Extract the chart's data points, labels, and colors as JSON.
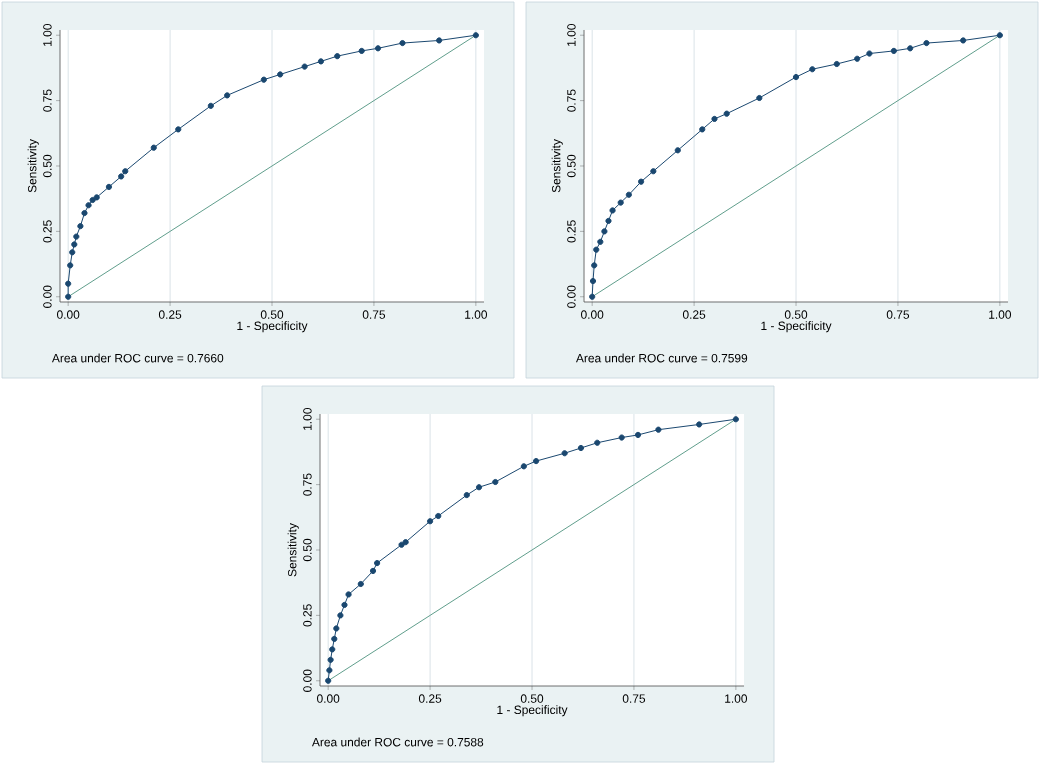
{
  "chart_data": [
    {
      "type": "line",
      "xlabel": "1 - Specificity",
      "ylabel": "Sensitivity",
      "grid": "x",
      "line_style": "solid",
      "xlim": [
        0,
        1
      ],
      "ylim": [
        0,
        1
      ],
      "xticks": [
        {
          "value": 0,
          "label": "0.00"
        },
        {
          "value": 0.25,
          "label": "0.25"
        },
        {
          "value": 0.5,
          "label": "0.50"
        },
        {
          "value": 0.75,
          "label": "0.75"
        },
        {
          "value": 1,
          "label": "1.00"
        }
      ],
      "yticks": [
        {
          "value": 0,
          "label": "0.00"
        },
        {
          "value": 0.25,
          "label": "0.25"
        },
        {
          "value": 0.5,
          "label": "0.50"
        },
        {
          "value": 0.75,
          "label": "0.75"
        },
        {
          "value": 1,
          "label": "1.00"
        }
      ],
      "annotations": [
        "Area under ROC curve = 0.7660"
      ],
      "series": [
        {
          "color": "#1a476f",
          "marker": "circle",
          "x": [
            0,
            0,
            0.005,
            0.01,
            0.015,
            0.02,
            0.03,
            0.04,
            0.05,
            0.06,
            0.07,
            0.1,
            0.13,
            0.14,
            0.21,
            0.27,
            0.35,
            0.39,
            0.48,
            0.52,
            0.58,
            0.62,
            0.66,
            0.72,
            0.76,
            0.82,
            0.91,
            1.0
          ],
          "values": [
            0,
            0.05,
            0.12,
            0.17,
            0.2,
            0.23,
            0.27,
            0.32,
            0.35,
            0.37,
            0.38,
            0.42,
            0.46,
            0.48,
            0.57,
            0.64,
            0.73,
            0.77,
            0.83,
            0.85,
            0.88,
            0.9,
            0.92,
            0.94,
            0.95,
            0.97,
            0.98,
            1.0
          ]
        },
        {
          "color": "#5f9e8c",
          "marker": "none",
          "x": [
            0,
            1
          ],
          "values": [
            0,
            1
          ]
        }
      ]
    },
    {
      "type": "line",
      "xlabel": "1 - Specificity",
      "ylabel": "Sensitivity",
      "grid": "x",
      "line_style": "solid",
      "xlim": [
        0,
        1
      ],
      "ylim": [
        0,
        1
      ],
      "xticks": [
        {
          "value": 0,
          "label": "0.00"
        },
        {
          "value": 0.25,
          "label": "0.25"
        },
        {
          "value": 0.5,
          "label": "0.50"
        },
        {
          "value": 0.75,
          "label": "0.75"
        },
        {
          "value": 1,
          "label": "1.00"
        }
      ],
      "yticks": [
        {
          "value": 0,
          "label": "0.00"
        },
        {
          "value": 0.25,
          "label": "0.25"
        },
        {
          "value": 0.5,
          "label": "0.50"
        },
        {
          "value": 0.75,
          "label": "0.75"
        },
        {
          "value": 1,
          "label": "1.00"
        }
      ],
      "annotations": [
        "Area under ROC curve = 0.7599"
      ],
      "series": [
        {
          "color": "#1a476f",
          "marker": "circle",
          "x": [
            0,
            0.002,
            0.005,
            0.01,
            0.02,
            0.03,
            0.04,
            0.05,
            0.07,
            0.09,
            0.12,
            0.15,
            0.21,
            0.27,
            0.3,
            0.33,
            0.41,
            0.5,
            0.54,
            0.6,
            0.65,
            0.68,
            0.74,
            0.78,
            0.82,
            0.91,
            1
          ],
          "values": [
            0,
            0.06,
            0.12,
            0.18,
            0.21,
            0.25,
            0.29,
            0.33,
            0.36,
            0.39,
            0.44,
            0.48,
            0.56,
            0.64,
            0.68,
            0.7,
            0.76,
            0.84,
            0.87,
            0.89,
            0.91,
            0.93,
            0.94,
            0.95,
            0.97,
            0.98,
            1
          ]
        },
        {
          "color": "#5f9e8c",
          "marker": "none",
          "x": [
            0,
            1
          ],
          "values": [
            0,
            1
          ]
        }
      ]
    },
    {
      "type": "line",
      "xlabel": "1 - Specificity",
      "ylabel": "Sensitivity",
      "grid": "x",
      "line_style": "solid",
      "xlim": [
        0,
        1
      ],
      "ylim": [
        0,
        1
      ],
      "xticks": [
        {
          "value": 0,
          "label": "0.00"
        },
        {
          "value": 0.25,
          "label": "0.25"
        },
        {
          "value": 0.5,
          "label": "0.50"
        },
        {
          "value": 0.75,
          "label": "0.75"
        },
        {
          "value": 1,
          "label": "1.00"
        }
      ],
      "yticks": [
        {
          "value": 0,
          "label": "0.00"
        },
        {
          "value": 0.25,
          "label": "0.25"
        },
        {
          "value": 0.5,
          "label": "0.50"
        },
        {
          "value": 0.75,
          "label": "0.75"
        },
        {
          "value": 1,
          "label": "1.00"
        }
      ],
      "annotations": [
        "Area under ROC curve = 0.7588"
      ],
      "series": [
        {
          "color": "#1a476f",
          "marker": "circle",
          "x": [
            0,
            0.003,
            0.006,
            0.01,
            0.015,
            0.02,
            0.03,
            0.04,
            0.05,
            0.08,
            0.11,
            0.12,
            0.18,
            0.19,
            0.25,
            0.27,
            0.34,
            0.37,
            0.41,
            0.48,
            0.51,
            0.58,
            0.62,
            0.66,
            0.72,
            0.76,
            0.81,
            0.91,
            1
          ],
          "values": [
            0,
            0.04,
            0.08,
            0.12,
            0.16,
            0.2,
            0.25,
            0.29,
            0.33,
            0.37,
            0.42,
            0.45,
            0.52,
            0.53,
            0.61,
            0.63,
            0.71,
            0.74,
            0.76,
            0.82,
            0.84,
            0.87,
            0.89,
            0.91,
            0.93,
            0.94,
            0.96,
            0.98,
            1
          ]
        },
        {
          "color": "#5f9e8c",
          "marker": "none",
          "x": [
            0,
            1
          ],
          "values": [
            0,
            1
          ]
        }
      ]
    }
  ]
}
